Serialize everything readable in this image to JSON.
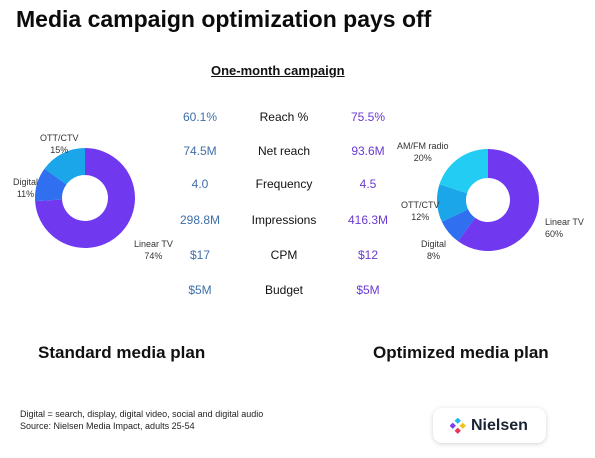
{
  "title": "Media campaign optimization pays off",
  "subtitle": "One-month campaign",
  "standard_plan_label": "Standard media plan",
  "optimized_plan_label": "Optimized media plan",
  "footnotes": [
    "Digital = search, display, digital video, social and digital audio",
    "Source: Nielsen Media Impact, adults 25-54"
  ],
  "brand": {
    "name": "Nielsen"
  },
  "colors": {
    "linear_tv": "#7039f0",
    "ott_ctv": "#1aa6e8",
    "digital": "#2f6ff0",
    "am_fm_radio": "#22ccf2",
    "standard_value": "#3f6fa8",
    "optimized_value": "#6a3bd0"
  },
  "metrics": [
    {
      "name": "Reach %",
      "standard": "60.1%",
      "optimized": "75.5%"
    },
    {
      "name": "Net reach",
      "standard": "74.5M",
      "optimized": "93.6M"
    },
    {
      "name": "Frequency",
      "standard": "4.0",
      "optimized": "4.5"
    },
    {
      "name": "Impressions",
      "standard": "298.8M",
      "optimized": "416.3M"
    },
    {
      "name": "CPM",
      "standard": "$17",
      "optimized": "$12"
    },
    {
      "name": "Budget",
      "standard": "$5M",
      "optimized": "$5M"
    }
  ],
  "chart_data": [
    {
      "type": "pie",
      "title": "Standard media plan",
      "slices": [
        {
          "label": "Linear TV",
          "value": 74,
          "value_label": "74%",
          "color": "#7039f0"
        },
        {
          "label": "Digital",
          "value": 11,
          "value_label": "11%",
          "color": "#2f6ff0"
        },
        {
          "label": "OTT/CTV",
          "value": 15,
          "value_label": "15%",
          "color": "#1aa6e8"
        }
      ]
    },
    {
      "type": "pie",
      "title": "Optimized media plan",
      "slices": [
        {
          "label": "Linear TV",
          "value": 60,
          "value_label": "60%",
          "color": "#7039f0"
        },
        {
          "label": "Digital",
          "value": 8,
          "value_label": "8%",
          "color": "#2f6ff0"
        },
        {
          "label": "OTT/CTV",
          "value": 12,
          "value_label": "12%",
          "color": "#1aa6e8"
        },
        {
          "label": "AM/FM radio",
          "value": 20,
          "value_label": "20%",
          "color": "#22ccf2"
        }
      ]
    }
  ]
}
